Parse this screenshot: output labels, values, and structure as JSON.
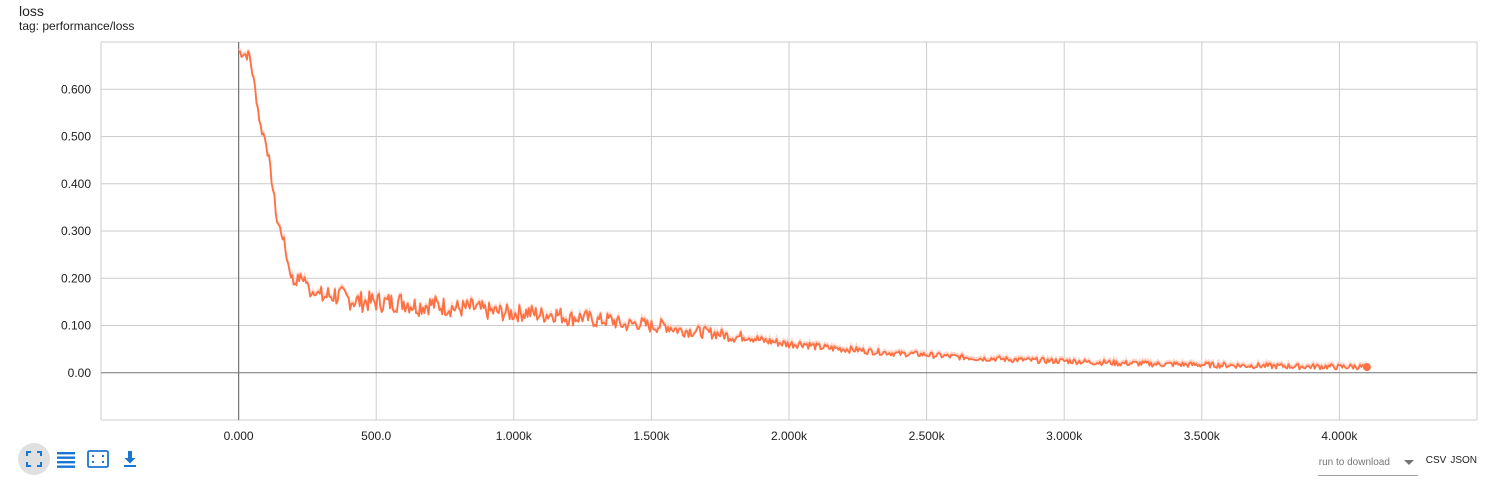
{
  "card": {
    "title": "loss",
    "subtitle": "tag: performance/loss"
  },
  "colors": {
    "line": "#ff7043",
    "smooth_raw": "#ffccbc",
    "grid": "#cccccc",
    "axis": "#757575",
    "icon": "#1976d2"
  },
  "toolbar": {
    "buttons": [
      {
        "name": "fit-domain-icon"
      },
      {
        "name": "toggle-log-scale-icon"
      },
      {
        "name": "toggle-y-axis-icon"
      },
      {
        "name": "download-icon"
      }
    ]
  },
  "download": {
    "placeholder": "run to download",
    "csv_label": "CSV",
    "json_label": "JSON"
  },
  "chart_data": {
    "type": "line",
    "title": "loss",
    "subtitle": "tag: performance/loss",
    "xlabel": "",
    "ylabel": "",
    "grid": true,
    "xlim": [
      -500,
      4500
    ],
    "ylim": [
      -0.1,
      0.7
    ],
    "x_ticks": [
      0,
      500,
      1000,
      1500,
      2000,
      2500,
      3000,
      3500,
      4000
    ],
    "x_tick_labels": [
      "0.000",
      "500.0",
      "1.000k",
      "1.500k",
      "2.000k",
      "2.500k",
      "3.000k",
      "3.500k",
      "4.000k"
    ],
    "y_ticks": [
      0,
      0.1,
      0.2,
      0.3,
      0.4,
      0.5,
      0.6
    ],
    "y_tick_labels": [
      "0.00",
      "0.100",
      "0.200",
      "0.300",
      "0.400",
      "0.500",
      "0.600"
    ],
    "series": [
      {
        "x": [
          0,
          20,
          40,
          60,
          80,
          100,
          120,
          140,
          160,
          180,
          200,
          220,
          240,
          260,
          280,
          300,
          350,
          400,
          450,
          500,
          550,
          600,
          650,
          700,
          750,
          800,
          850,
          900,
          950,
          1000,
          1050,
          1100,
          1150,
          1200,
          1250,
          1300,
          1350,
          1400,
          1450,
          1500,
          1550,
          1600,
          1650,
          1700,
          1750,
          1800,
          1850,
          1900,
          1950,
          2000,
          2050,
          2100,
          2150,
          2200,
          2250,
          2300,
          2350,
          2400,
          2450,
          2500,
          2550,
          2600,
          2650,
          2700,
          2750,
          2800,
          2850,
          2900,
          2950,
          3000,
          3050,
          3100,
          3150,
          3200,
          3250,
          3300,
          3350,
          3400,
          3450,
          3500,
          3550,
          3600,
          3650,
          3700,
          3750,
          3800,
          3850,
          3900,
          3950,
          4000,
          4050,
          4100
        ],
        "y": [
          0.68,
          0.675,
          0.67,
          0.6,
          0.52,
          0.49,
          0.41,
          0.32,
          0.29,
          0.23,
          0.19,
          0.2,
          0.2,
          0.17,
          0.175,
          0.16,
          0.165,
          0.155,
          0.15,
          0.15,
          0.148,
          0.15,
          0.14,
          0.145,
          0.14,
          0.135,
          0.138,
          0.13,
          0.128,
          0.125,
          0.128,
          0.122,
          0.125,
          0.115,
          0.118,
          0.11,
          0.112,
          0.1,
          0.105,
          0.098,
          0.1,
          0.09,
          0.088,
          0.085,
          0.082,
          0.075,
          0.078,
          0.068,
          0.065,
          0.06,
          0.062,
          0.055,
          0.052,
          0.05,
          0.048,
          0.045,
          0.043,
          0.04,
          0.04,
          0.038,
          0.036,
          0.034,
          0.032,
          0.03,
          0.03,
          0.028,
          0.027,
          0.026,
          0.025,
          0.025,
          0.024,
          0.022,
          0.022,
          0.02,
          0.02,
          0.019,
          0.018,
          0.018,
          0.017,
          0.017,
          0.016,
          0.016,
          0.015,
          0.015,
          0.014,
          0.014,
          0.013,
          0.013,
          0.013,
          0.012,
          0.013,
          0.012
        ]
      }
    ]
  }
}
